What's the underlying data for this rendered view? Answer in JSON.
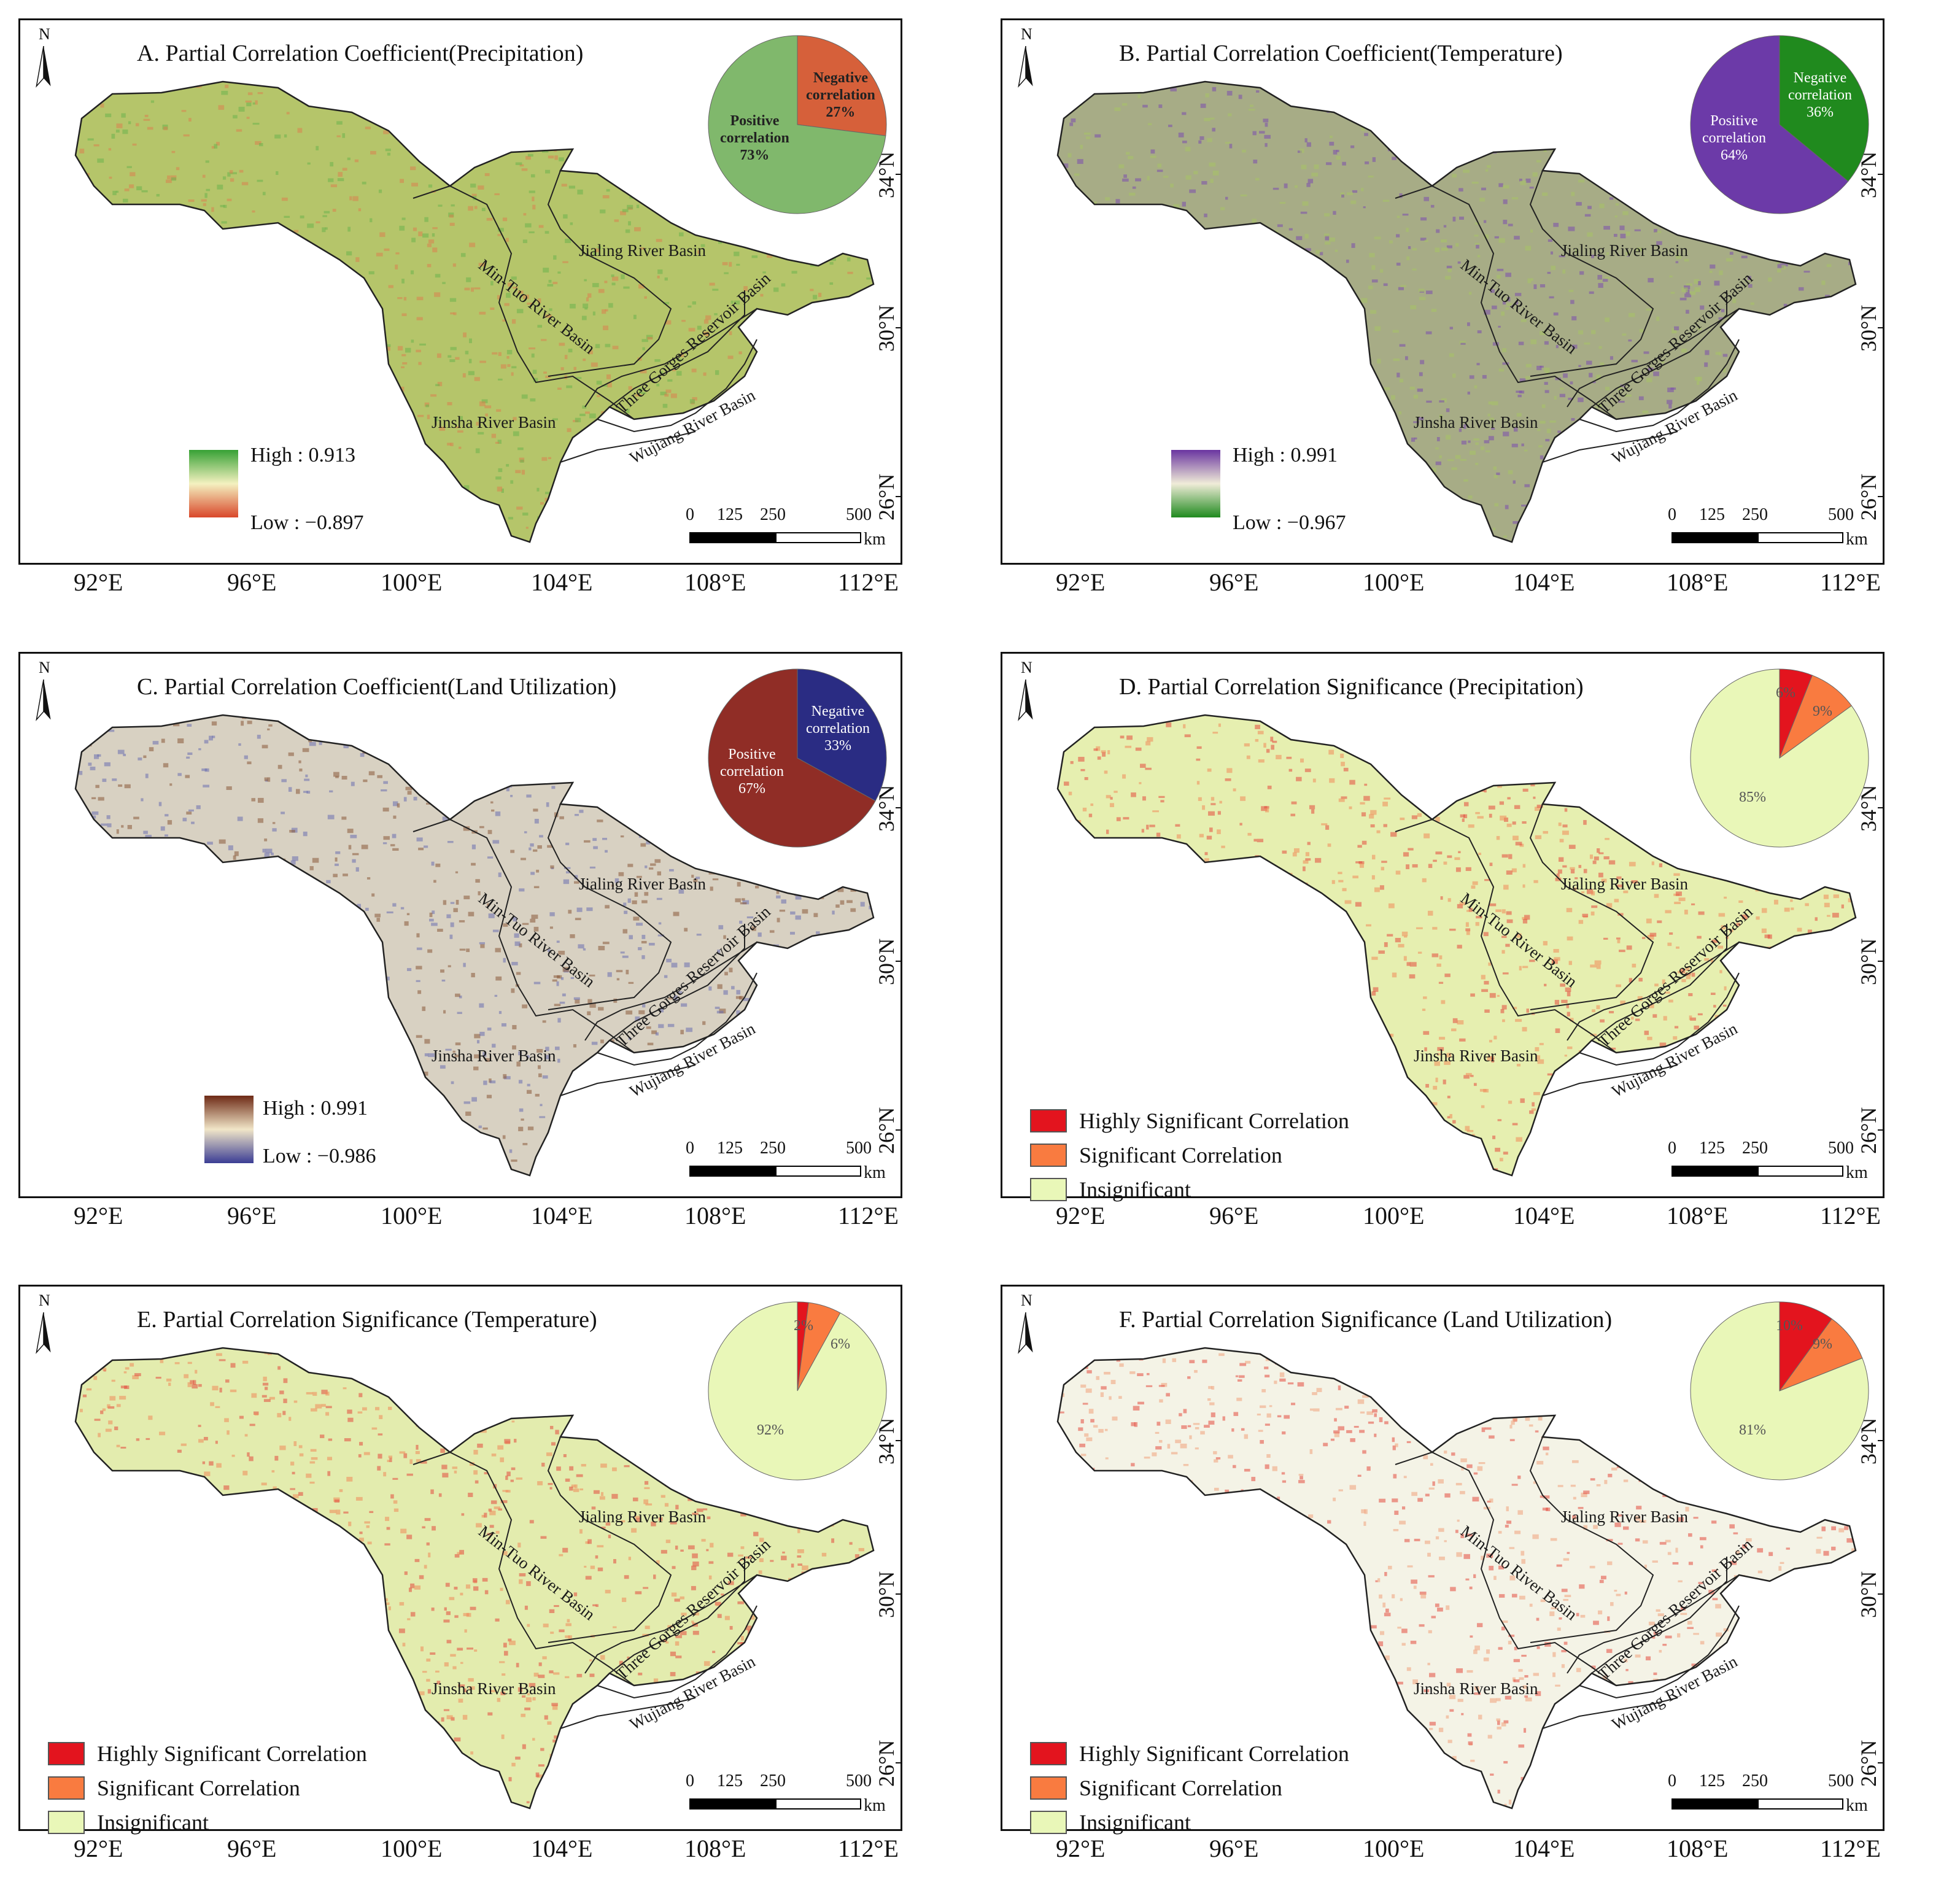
{
  "panels": [
    {
      "id": "A",
      "title": "A. Partial Correlation Coefficient(Precipitation)",
      "pie": {
        "positive_label": "Positive\ncorrelation\n73%",
        "negative_label": "Negative\ncorrelation\n27%",
        "positive_pct": 73,
        "negative_pct": 27,
        "positive_color": "#80b86c",
        "negative_color": "#d6603a"
      },
      "legend": {
        "high": "High : 0.913",
        "low": "Low : −0.897",
        "colors": [
          "#37a135",
          "#f4f1c0",
          "#d9472a"
        ]
      },
      "map_colors": {
        "fill": "#b5c56a",
        "mix": [
          "#6cb34c",
          "#d8824e"
        ]
      }
    },
    {
      "id": "B",
      "title": "B. Partial Correlation Coefficient(Temperature)",
      "pie": {
        "positive_label": "Positive\ncorrelation\n64%",
        "negative_label": "Negative\ncorrelation\n36%",
        "positive_pct": 64,
        "negative_pct": 36,
        "positive_color": "#6c3aa8",
        "negative_color": "#208a1e"
      },
      "legend": {
        "high": "High : 0.991",
        "low": "Low : −0.967",
        "colors": [
          "#6a35a0",
          "#f0ecd8",
          "#1f8a1e"
        ]
      },
      "map_colors": {
        "fill": "#a7ac86",
        "mix": [
          "#7c4fae",
          "#a7c466"
        ]
      }
    },
    {
      "id": "C",
      "title": "C. Partial Correlation Coefficient(Land Utilization)",
      "pie": {
        "positive_label": "Positive\ncorrelation\n67%",
        "negative_label": "Negative\ncorrelation\n33%",
        "positive_pct": 67,
        "negative_pct": 33,
        "positive_color": "#902d26",
        "negative_color": "#2a2c83"
      },
      "legend": {
        "high": "High : 0.991",
        "low": "Low : −0.986",
        "colors": [
          "#6e2a16",
          "#f1e6c8",
          "#3b3d95"
        ]
      },
      "map_colors": {
        "fill": "#d8d1c2",
        "mix": [
          "#8b5a3a",
          "#6b6fb0"
        ]
      }
    },
    {
      "id": "D",
      "title": "D. Partial Correlation  Significance (Precipitation)",
      "pie": {
        "slices": [
          {
            "label": "6%",
            "pct": 6,
            "color": "#e3141e"
          },
          {
            "label": "9%",
            "pct": 9,
            "color": "#f97b40"
          },
          {
            "label": "85%",
            "pct": 85,
            "color": "#e9f7b8"
          }
        ]
      },
      "legend_items": [
        "Highly Significant Correlation",
        "Significant Correlation",
        "Insignificant"
      ],
      "map_colors": {
        "fill": "#e6efb0",
        "mix": [
          "#e34a3e",
          "#f08a5a"
        ]
      }
    },
    {
      "id": "E",
      "title": "E. Partial Correlation  Significance (Temperature)",
      "pie": {
        "slices": [
          {
            "label": "2%",
            "pct": 2,
            "color": "#e3141e"
          },
          {
            "label": "6%",
            "pct": 6,
            "color": "#f97b40"
          },
          {
            "label": "92%",
            "pct": 92,
            "color": "#e9f7b8"
          }
        ]
      },
      "legend_items": [
        "Highly Significant Correlation",
        "Significant Correlation",
        "Insignificant"
      ],
      "map_colors": {
        "fill": "#e3ecae",
        "mix": [
          "#e34a3e",
          "#f08a5a"
        ]
      }
    },
    {
      "id": "F",
      "title": "F. Partial Correlation  Significance (Land Utilization)",
      "pie": {
        "slices": [
          {
            "label": "10%",
            "pct": 10,
            "color": "#e3141e"
          },
          {
            "label": "9%",
            "pct": 9,
            "color": "#f97b40"
          },
          {
            "label": "81%",
            "pct": 81,
            "color": "#e9f7b8"
          }
        ]
      },
      "legend_items": [
        "Highly Significant Correlation",
        "Significant Correlation",
        "Insignificant"
      ],
      "map_colors": {
        "fill": "#f4f3e6",
        "mix": [
          "#e34a3e",
          "#f0a07a"
        ]
      }
    }
  ],
  "basins": {
    "jinsha": "Jinsha River Basin",
    "mintuo": "Min-Tuo River Basin",
    "jialing": "Jialing River Basin",
    "threegorges": "Three Gorges Reservoir Basin",
    "wujiang": "Wujiang River Basin"
  },
  "axes": {
    "lon_ticks": [
      "92°E",
      "96°E",
      "100°E",
      "104°E",
      "108°E",
      "112°E"
    ],
    "lat_ticks": [
      "34°N",
      "30°N",
      "26°N"
    ]
  },
  "north": "N",
  "scale": {
    "t0": "0",
    "t1": "125",
    "t2": "250",
    "t3": "500",
    "unit": "km"
  }
}
